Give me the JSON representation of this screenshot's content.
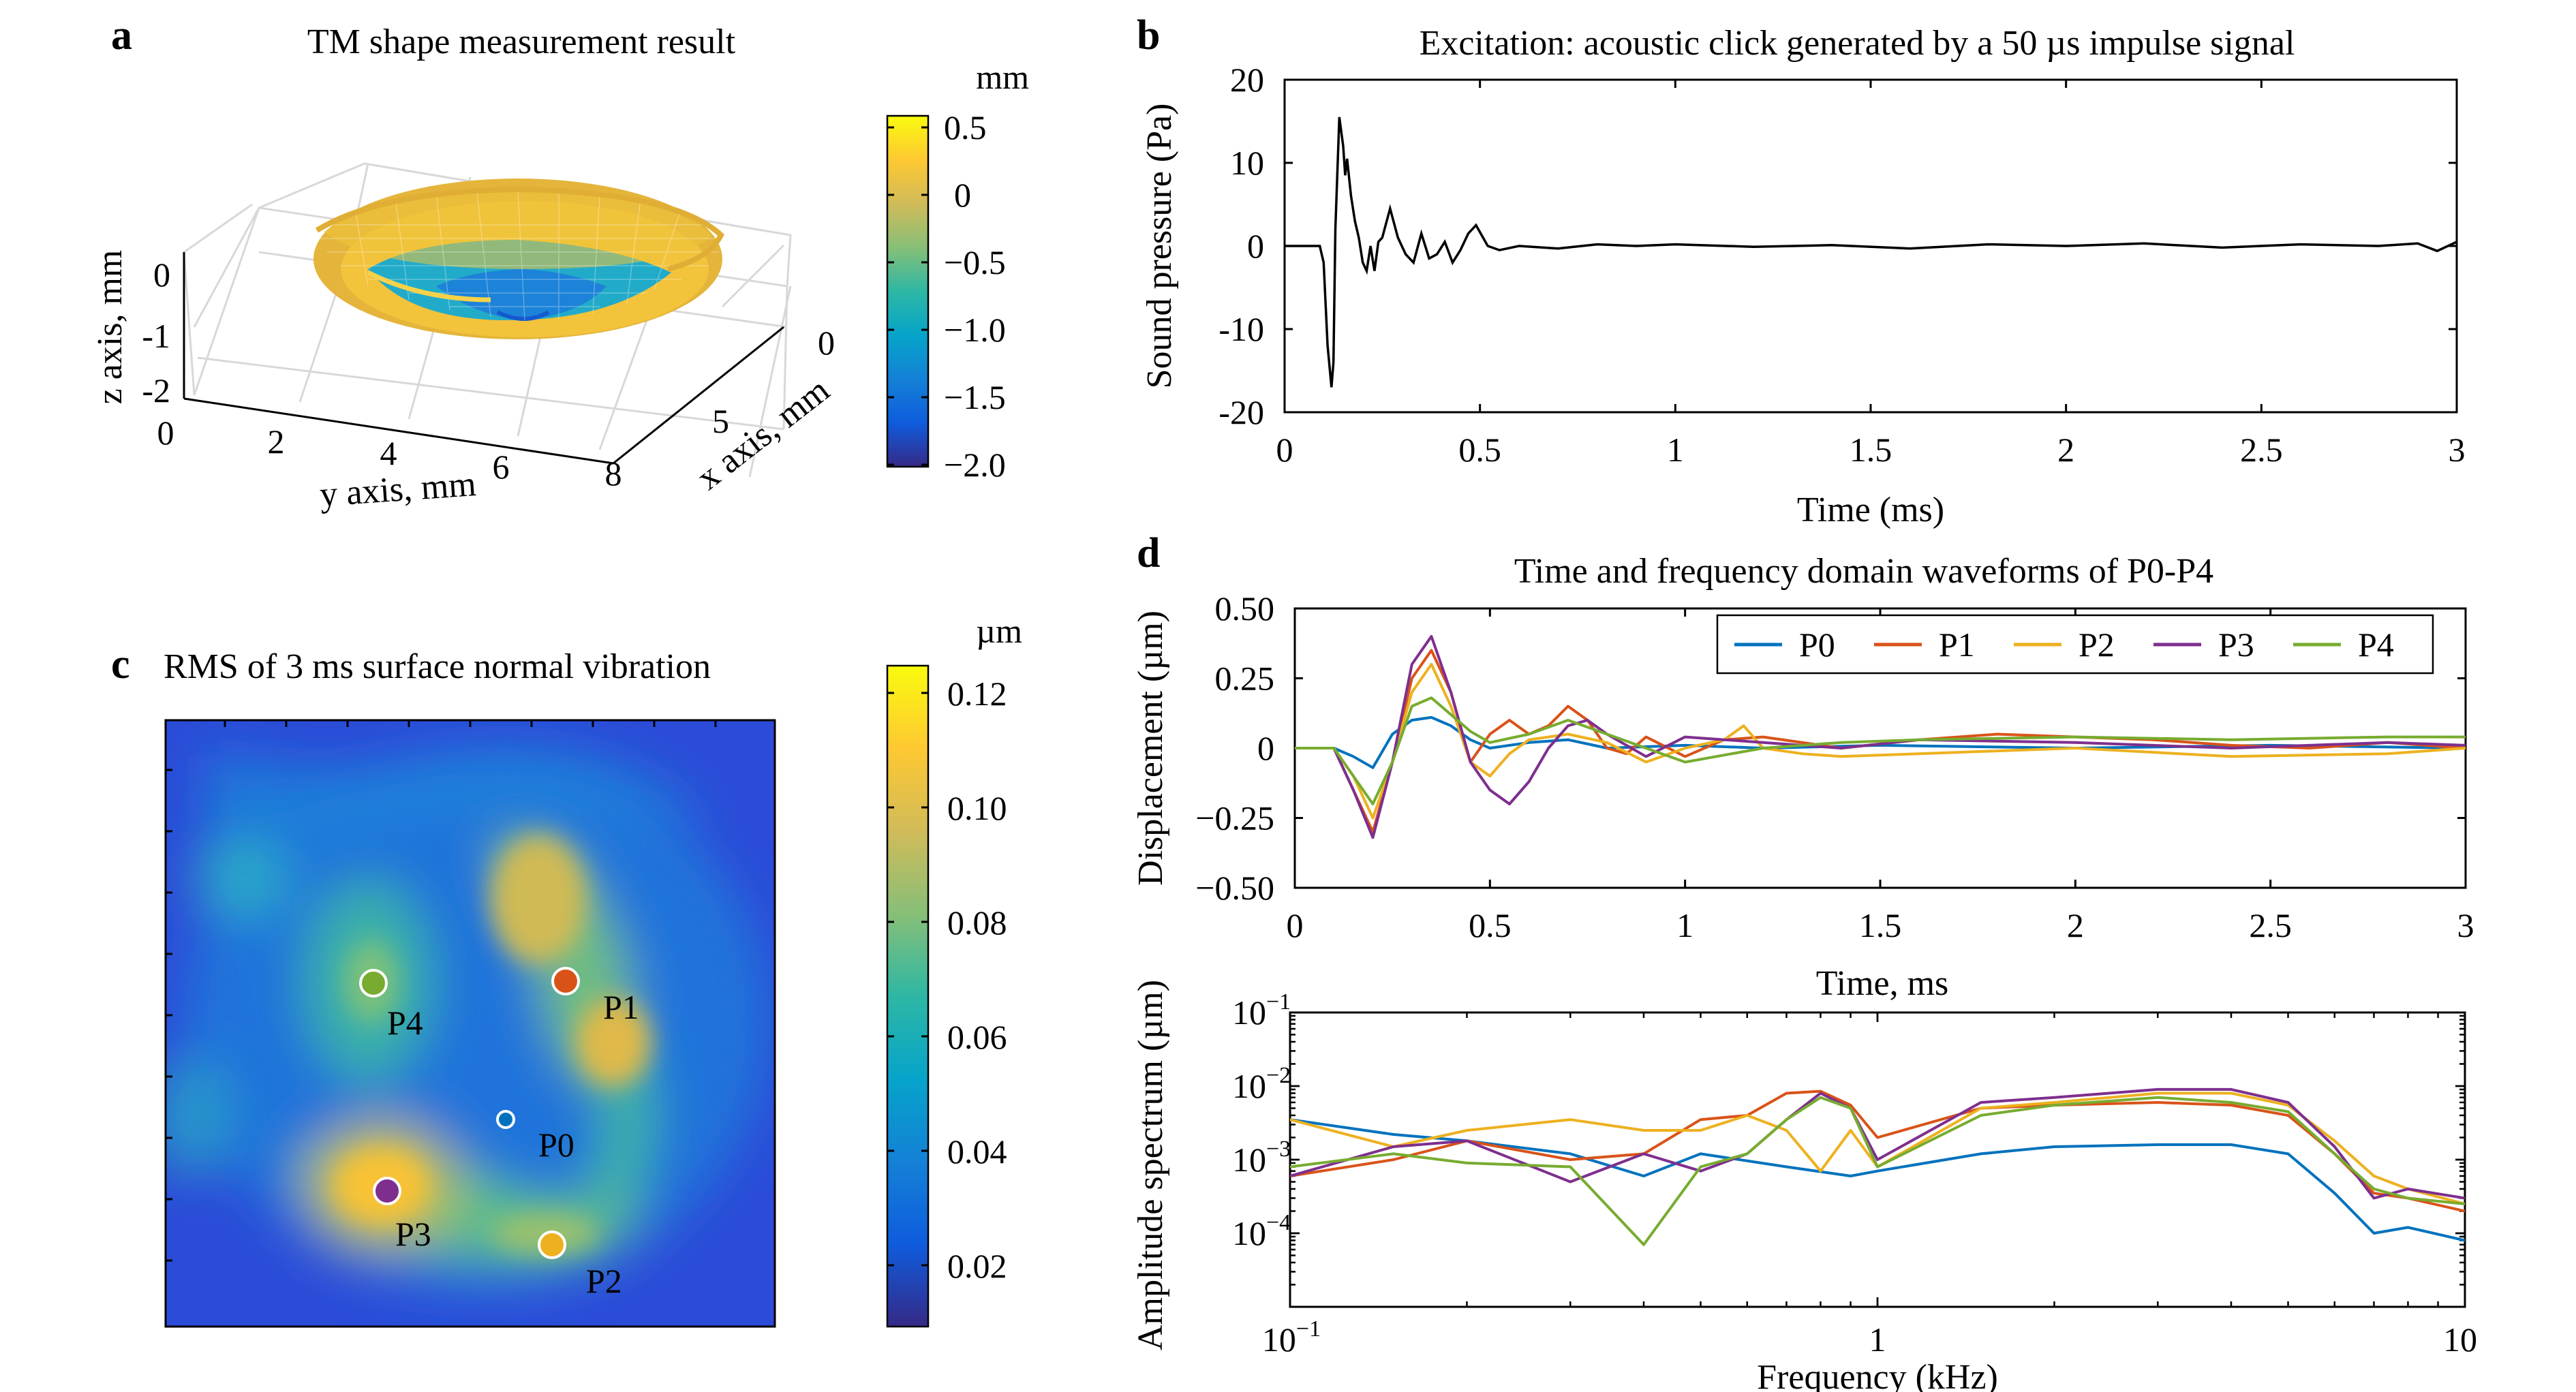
{
  "panels": {
    "a": {
      "letter": "a",
      "title": "TM shape measurement result"
    },
    "b": {
      "letter": "b",
      "title": "Excitation: acoustic click generated by a 50 µs impulse signal"
    },
    "c": {
      "letter": "c",
      "title": "RMS of 3 ms surface normal vibration"
    },
    "d": {
      "letter": "d",
      "title": "Time and frequency domain waveforms of P0-P4"
    }
  },
  "colors": {
    "P0": "#0072BD",
    "P1": "#D95319",
    "P2": "#EDB120",
    "P3": "#7E2F8E",
    "P4": "#77AC30",
    "parula": [
      "#352A87",
      "#0F5CDD",
      "#1481D6",
      "#06A4CA",
      "#2EB7A4",
      "#87BF77",
      "#D1BB59",
      "#FEC832",
      "#F9FB0E"
    ]
  },
  "chart_data": [
    {
      "id": "a",
      "type": "surface3d",
      "title": "TM shape measurement result",
      "xlabel": "x axis, mm",
      "ylabel": "y axis, mm",
      "zlabel": "z axis, mm",
      "x_ticks": [
        "0",
        "5"
      ],
      "y_ticks": [
        "0",
        "2",
        "4",
        "6",
        "8"
      ],
      "z_ticks": [
        "0",
        "-1",
        "-2"
      ],
      "colorbar": {
        "unit": "mm",
        "ticks": [
          "0.5",
          "0",
          "−0.5",
          "−1.0",
          "−1.5",
          "−2.0"
        ],
        "range": [
          -2.0,
          0.6
        ]
      },
      "surface": {
        "rim_z": 0.4,
        "min_z": -1.5
      }
    },
    {
      "id": "b",
      "type": "line",
      "title": "Excitation: acoustic click generated by a 50 µs impulse signal",
      "xlabel": "Time (ms)",
      "ylabel": "Sound pressure (Pa)",
      "xlim": [
        0,
        3
      ],
      "ylim": [
        -20,
        20
      ],
      "x_ticks": [
        "0",
        "0.5",
        "1",
        "1.5",
        "2",
        "2.5",
        "3"
      ],
      "y_ticks": [
        "20",
        "10",
        "0",
        "-10",
        "-20"
      ],
      "series": [
        {
          "x": [
            0,
            0.09,
            0.1,
            0.11,
            0.12,
            0.125,
            0.13,
            0.14,
            0.15,
            0.155,
            0.16,
            0.17,
            0.18,
            0.19,
            0.2,
            0.21,
            0.22,
            0.23,
            0.24,
            0.25,
            0.27,
            0.29,
            0.31,
            0.33,
            0.35,
            0.37,
            0.39,
            0.41,
            0.43,
            0.45,
            0.47,
            0.49,
            0.52,
            0.55,
            0.6,
            0.7,
            0.8,
            0.9,
            1.0,
            1.2,
            1.4,
            1.6,
            1.8,
            2.0,
            2.2,
            2.4,
            2.6,
            2.8,
            2.9,
            2.95,
            3.0
          ],
          "y": [
            0,
            0,
            -2,
            -12,
            -17,
            -14,
            2,
            15.5,
            12,
            8.5,
            10.5,
            6,
            3,
            1,
            -2,
            -3,
            0,
            -3,
            0.5,
            1,
            4.5,
            1,
            -1,
            -2,
            1.5,
            -1.5,
            -1,
            0.5,
            -2,
            -0.5,
            1.5,
            2.5,
            0,
            -0.5,
            0,
            -0.3,
            0.2,
            0,
            0.2,
            -0.1,
            0.1,
            -0.3,
            0.2,
            0,
            0.3,
            -0.2,
            0.2,
            0,
            0.3,
            -0.6,
            0.5
          ]
        }
      ]
    },
    {
      "id": "c",
      "type": "heatmap",
      "title": "RMS of 3 ms surface normal vibration",
      "colorbar": {
        "unit": "µm",
        "ticks": [
          "0.12",
          "0.10",
          "0.08",
          "0.06",
          "0.04",
          "0.02"
        ],
        "range": [
          0.005,
          0.125
        ]
      },
      "points": [
        {
          "label": "P0",
          "value": 0.04
        },
        {
          "label": "P1",
          "value": 0.1
        },
        {
          "label": "P2",
          "value": 0.095
        },
        {
          "label": "P3",
          "value": 0.12
        },
        {
          "label": "P4",
          "value": 0.075
        }
      ]
    },
    {
      "id": "d_time",
      "type": "line",
      "title": "Time and frequency domain waveforms of P0-P4",
      "xlabel": "Time, ms",
      "ylabel": "Displacement (µm)",
      "xlim": [
        0,
        3
      ],
      "ylim": [
        -0.5,
        0.5
      ],
      "x_ticks": [
        "0",
        "0.5",
        "1",
        "1.5",
        "2",
        "2.5",
        "3"
      ],
      "y_ticks": [
        "0.50",
        "0.25",
        "0",
        "−0.25",
        "−0.50"
      ],
      "legend": [
        "P0",
        "P1",
        "P2",
        "P3",
        "P4"
      ],
      "legend_position": "top-right",
      "series": [
        {
          "name": "P0",
          "x": [
            0,
            0.1,
            0.15,
            0.2,
            0.25,
            0.3,
            0.35,
            0.4,
            0.45,
            0.5,
            0.6,
            0.7,
            0.8,
            1.0,
            1.2,
            1.5,
            2.0,
            2.5,
            3.0
          ],
          "y": [
            0,
            0,
            -0.03,
            -0.07,
            0.05,
            0.1,
            0.11,
            0.08,
            0.03,
            0,
            0.02,
            0.03,
            0,
            0.01,
            0,
            0.01,
            0,
            0.01,
            0
          ]
        },
        {
          "name": "P1",
          "x": [
            0,
            0.1,
            0.15,
            0.2,
            0.25,
            0.3,
            0.35,
            0.4,
            0.45,
            0.5,
            0.55,
            0.6,
            0.65,
            0.7,
            0.75,
            0.8,
            0.85,
            0.9,
            1.0,
            1.1,
            1.2,
            1.4,
            1.6,
            1.8,
            2.0,
            2.2,
            2.4,
            2.6,
            2.8,
            3.0
          ],
          "y": [
            0,
            0,
            -0.15,
            -0.3,
            -0.05,
            0.25,
            0.35,
            0.2,
            -0.05,
            0.05,
            0.1,
            0.05,
            0.08,
            0.15,
            0.1,
            0,
            -0.02,
            0.04,
            -0.03,
            0.03,
            0.04,
            0,
            0.03,
            0.05,
            0.04,
            0.03,
            0.01,
            0,
            0.02,
            0
          ]
        },
        {
          "name": "P2",
          "x": [
            0,
            0.1,
            0.15,
            0.2,
            0.25,
            0.3,
            0.35,
            0.4,
            0.45,
            0.5,
            0.55,
            0.6,
            0.7,
            0.8,
            0.9,
            1.0,
            1.1,
            1.15,
            1.2,
            1.3,
            1.4,
            1.6,
            1.8,
            2.0,
            2.4,
            2.8,
            3.0
          ],
          "y": [
            0,
            0,
            -0.1,
            -0.25,
            -0.05,
            0.2,
            0.3,
            0.15,
            -0.05,
            -0.1,
            -0.02,
            0.03,
            0.05,
            0.02,
            -0.05,
            0,
            0.03,
            0.08,
            0,
            -0.02,
            -0.03,
            -0.02,
            -0.01,
            0,
            -0.03,
            -0.02,
            0
          ]
        },
        {
          "name": "P3",
          "x": [
            0,
            0.1,
            0.15,
            0.2,
            0.25,
            0.3,
            0.35,
            0.4,
            0.45,
            0.5,
            0.55,
            0.6,
            0.65,
            0.7,
            0.75,
            0.8,
            0.9,
            1.0,
            1.2,
            1.4,
            1.6,
            2.0,
            2.4,
            2.8,
            3.0
          ],
          "y": [
            0,
            0,
            -0.15,
            -0.32,
            -0.05,
            0.3,
            0.4,
            0.2,
            -0.05,
            -0.15,
            -0.2,
            -0.12,
            0,
            0.08,
            0.1,
            0.05,
            -0.03,
            0.04,
            0.02,
            0,
            0.03,
            0.02,
            0,
            0.02,
            0.01
          ]
        },
        {
          "name": "P4",
          "x": [
            0,
            0.1,
            0.15,
            0.2,
            0.25,
            0.3,
            0.35,
            0.4,
            0.45,
            0.5,
            0.6,
            0.7,
            0.8,
            0.9,
            1.0,
            1.2,
            1.4,
            1.6,
            2.0,
            2.4,
            2.8,
            3.0
          ],
          "y": [
            0,
            0,
            -0.1,
            -0.2,
            -0.05,
            0.15,
            0.18,
            0.12,
            0.06,
            0.02,
            0.05,
            0.1,
            0.05,
            0,
            -0.05,
            0,
            0.02,
            0.03,
            0.04,
            0.03,
            0.04,
            0.04
          ]
        }
      ]
    },
    {
      "id": "d_freq",
      "type": "line",
      "xlabel": "Frequency (kHz)",
      "ylabel": "Amplitude spectrum (µm)",
      "xscale": "log",
      "yscale": "log",
      "xlim": [
        0.1,
        10
      ],
      "ylim": [
        1e-05,
        0.1
      ],
      "x_ticks": [
        "0.1",
        "1",
        "10"
      ],
      "y_ticks": [
        "0.1",
        "0.01",
        "0.001",
        "0.0001"
      ],
      "series": [
        {
          "name": "P0",
          "x": [
            0.1,
            0.15,
            0.2,
            0.3,
            0.4,
            0.5,
            0.7,
            0.9,
            1.0,
            1.5,
            2.0,
            3.0,
            4.0,
            5.0,
            6.0,
            7.0,
            8.0,
            10.0
          ],
          "y": [
            0.0035,
            0.0022,
            0.0018,
            0.0012,
            0.0006,
            0.0012,
            0.0008,
            0.0006,
            0.0007,
            0.0012,
            0.0015,
            0.0016,
            0.0016,
            0.0012,
            0.00035,
            0.0001,
            0.00012,
            8e-05
          ]
        },
        {
          "name": "P1",
          "x": [
            0.1,
            0.15,
            0.2,
            0.3,
            0.4,
            0.5,
            0.6,
            0.7,
            0.8,
            0.9,
            1.0,
            1.5,
            2.0,
            3.0,
            4.0,
            5.0,
            6.0,
            7.0,
            8.0,
            10.0
          ],
          "y": [
            0.0006,
            0.001,
            0.0018,
            0.001,
            0.0012,
            0.0035,
            0.004,
            0.008,
            0.0085,
            0.0055,
            0.002,
            0.005,
            0.0055,
            0.006,
            0.0055,
            0.004,
            0.0012,
            0.00035,
            0.0003,
            0.0002
          ]
        },
        {
          "name": "P2",
          "x": [
            0.1,
            0.15,
            0.2,
            0.3,
            0.4,
            0.5,
            0.6,
            0.7,
            0.8,
            0.9,
            1.0,
            1.5,
            2.0,
            3.0,
            4.0,
            5.0,
            6.0,
            7.0,
            8.0,
            10.0
          ],
          "y": [
            0.0035,
            0.0015,
            0.0025,
            0.0035,
            0.0025,
            0.0025,
            0.004,
            0.0025,
            0.0007,
            0.0025,
            0.0008,
            0.005,
            0.006,
            0.008,
            0.008,
            0.0055,
            0.0018,
            0.0006,
            0.0004,
            0.00025
          ]
        },
        {
          "name": "P3",
          "x": [
            0.1,
            0.15,
            0.2,
            0.3,
            0.4,
            0.5,
            0.6,
            0.7,
            0.8,
            0.9,
            1.0,
            1.5,
            2.0,
            3.0,
            4.0,
            5.0,
            6.0,
            7.0,
            8.0,
            10.0
          ],
          "y": [
            0.0006,
            0.0015,
            0.0018,
            0.0005,
            0.0012,
            0.0007,
            0.0012,
            0.0035,
            0.008,
            0.005,
            0.001,
            0.006,
            0.007,
            0.009,
            0.009,
            0.006,
            0.0015,
            0.0003,
            0.0004,
            0.0003
          ]
        },
        {
          "name": "P4",
          "x": [
            0.1,
            0.15,
            0.2,
            0.3,
            0.4,
            0.5,
            0.6,
            0.7,
            0.8,
            0.9,
            1.0,
            1.5,
            2.0,
            3.0,
            4.0,
            5.0,
            6.0,
            7.0,
            8.0,
            10.0
          ],
          "y": [
            0.0008,
            0.0012,
            0.0009,
            0.0008,
            7e-05,
            0.0008,
            0.0012,
            0.0035,
            0.007,
            0.005,
            0.0008,
            0.004,
            0.0055,
            0.007,
            0.006,
            0.0045,
            0.0012,
            0.0004,
            0.0003,
            0.00025
          ]
        }
      ]
    }
  ]
}
